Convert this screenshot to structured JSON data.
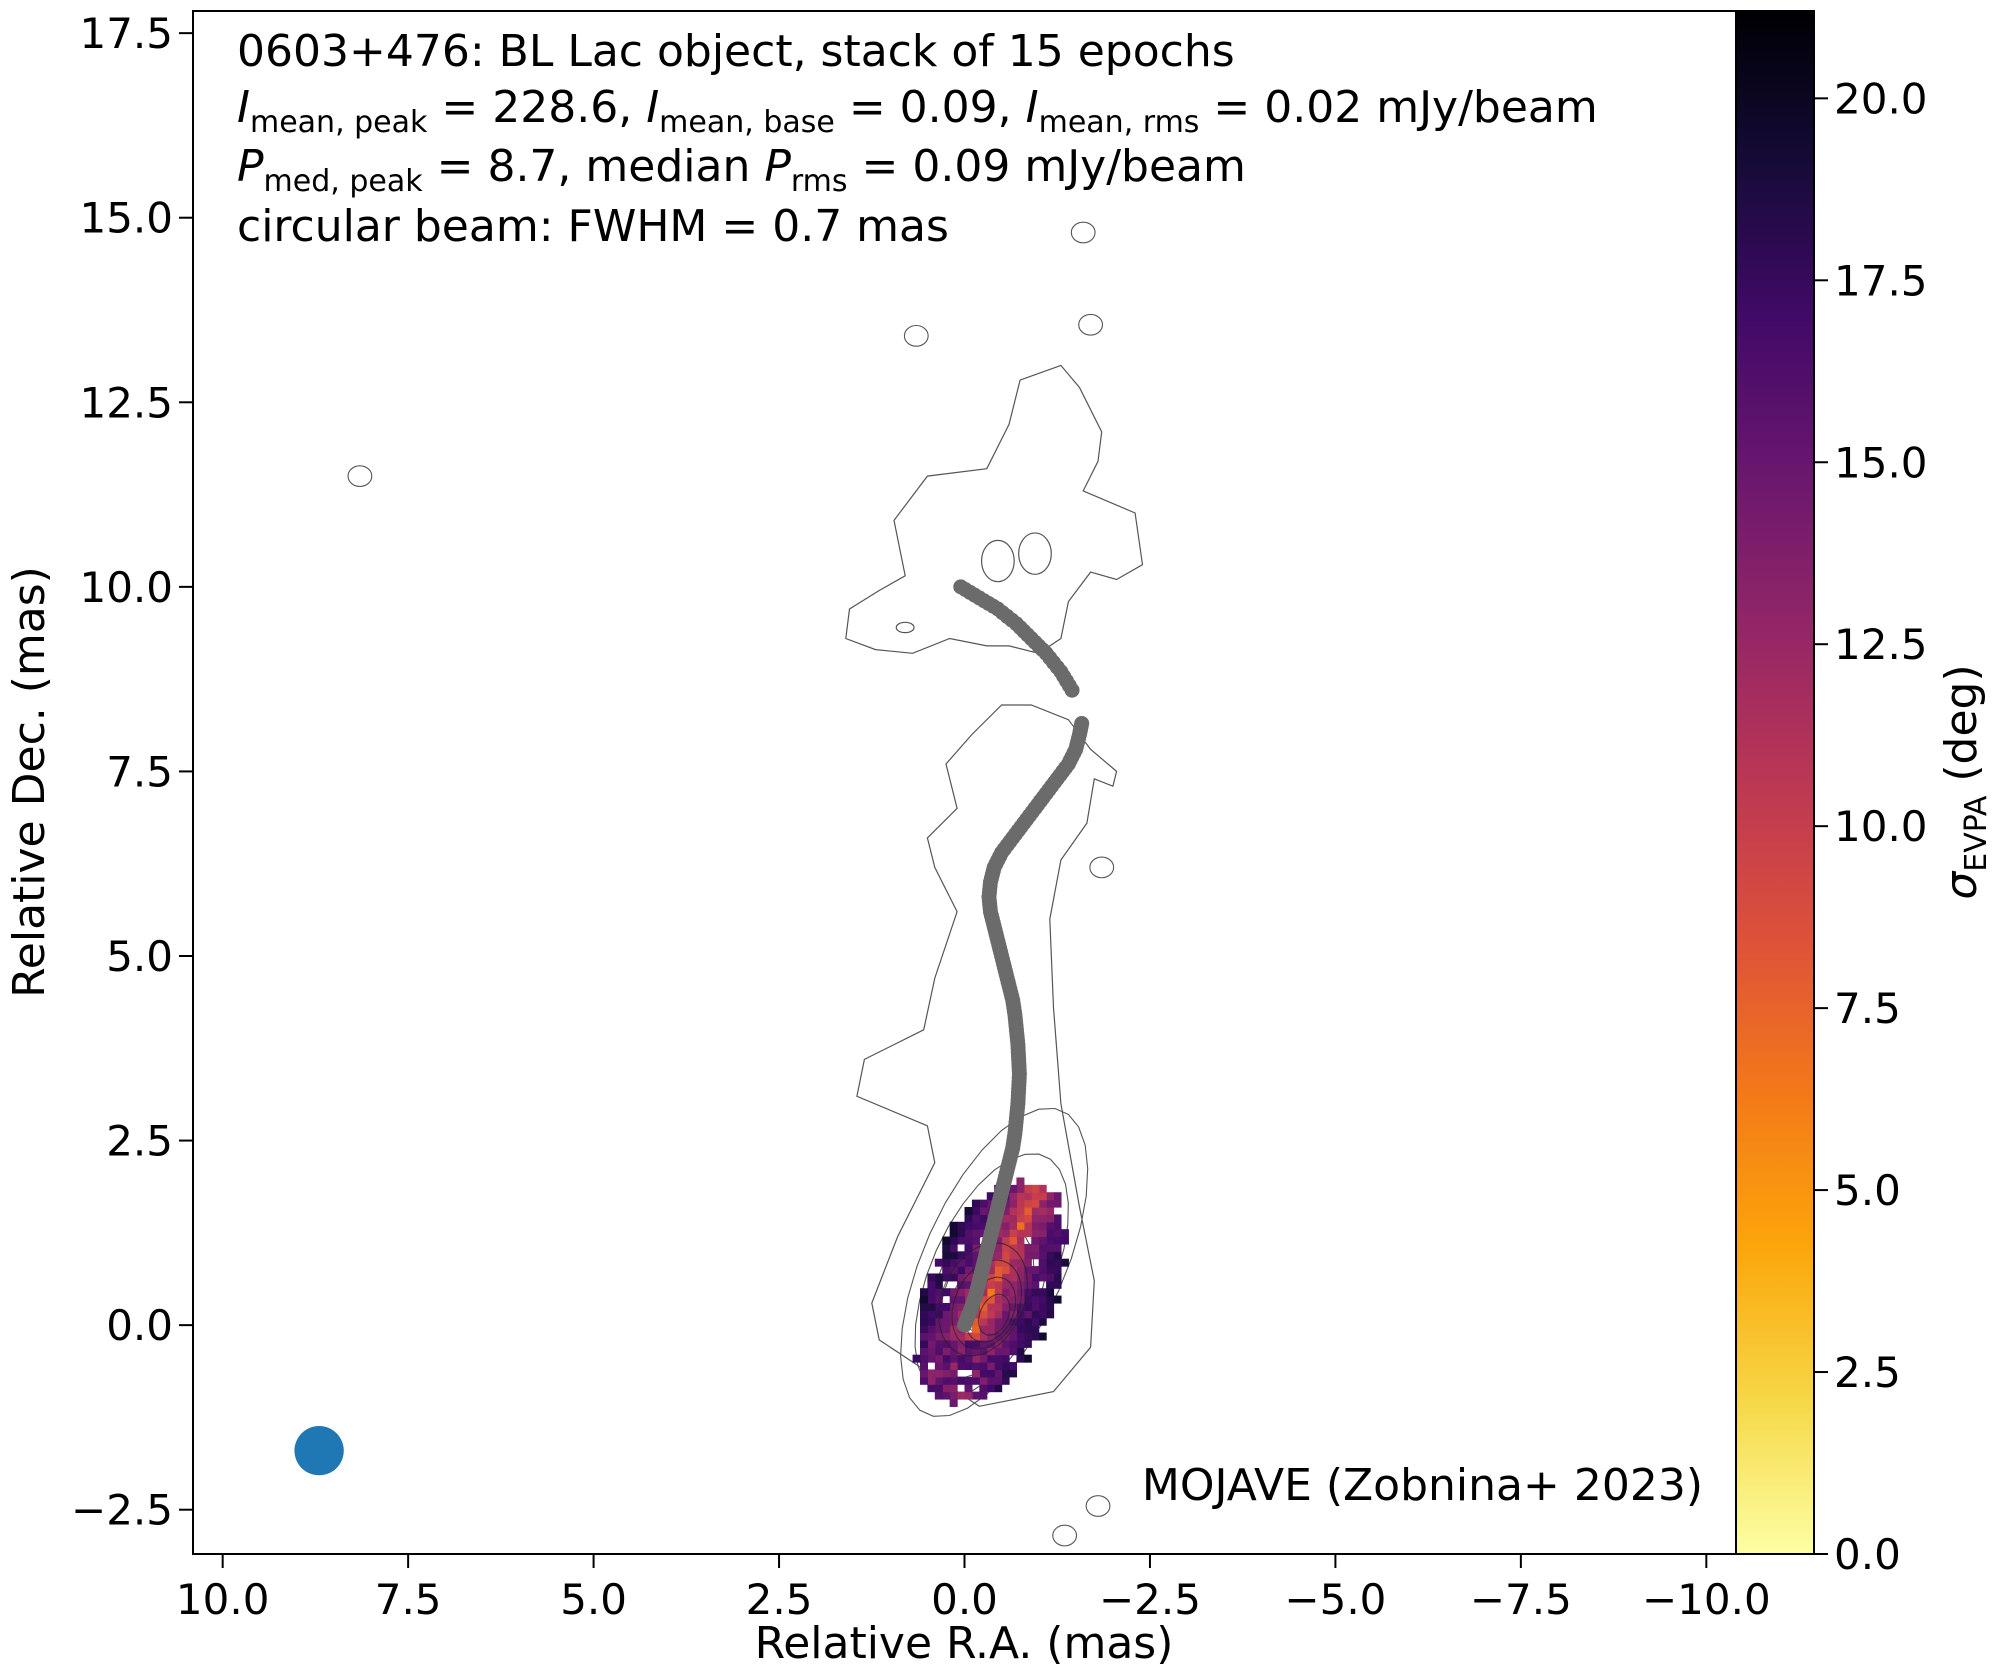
{
  "chart_data": {
    "type": "scatter",
    "title_lines": {
      "line1": "0603+476: BL Lac object, stack of 15 epochs",
      "line2": {
        "s1": "I",
        "s1sub": "mean, peak",
        "v1": " = 228.6, ",
        "s2": "I",
        "s2sub": "mean, base",
        "v2": " = 0.09, ",
        "s3": "I",
        "s3sub": "mean, rms",
        "v3": " = 0.02 mJy/beam"
      },
      "line3": {
        "s1": "P",
        "s1sub": "med, peak",
        "v1": " = 8.7, median ",
        "s2": "P",
        "s2sub": "rms",
        "v2": " = 0.09 mJy/beam"
      },
      "line4": "circular beam: FWHM = 0.7 mas"
    },
    "credit": "MOJAVE (Zobnina+ 2023)",
    "xlabel": "Relative R.A. (mas)",
    "ylabel": "Relative Dec. (mas)",
    "xlim": [
      10.4,
      -10.4
    ],
    "ylim": [
      -3.1,
      17.8
    ],
    "xticks": [
      10.0,
      7.5,
      5.0,
      2.5,
      0.0,
      -2.5,
      -5.0,
      -7.5,
      -10.0
    ],
    "xtick_labels": [
      "10.0",
      "7.5",
      "5.0",
      "2.5",
      "0.0",
      "−2.5",
      "−5.0",
      "−7.5",
      "−10.0"
    ],
    "yticks": [
      -2.5,
      0.0,
      2.5,
      5.0,
      7.5,
      10.0,
      12.5,
      15.0,
      17.5
    ],
    "ytick_labels": [
      "−2.5",
      "0.0",
      "2.5",
      "5.0",
      "7.5",
      "10.0",
      "12.5",
      "15.0",
      "17.5"
    ],
    "colorbar": {
      "label_sym": "σ",
      "label_sub": "EVPA",
      "label_unit": " (deg)",
      "range": [
        0,
        21.2
      ],
      "ticks": [
        0.0,
        2.5,
        5.0,
        7.5,
        10.0,
        12.5,
        15.0,
        17.5,
        20.0
      ],
      "tick_labels": [
        "0.0",
        "2.5",
        "5.0",
        "7.5",
        "10.0",
        "12.5",
        "15.0",
        "17.5",
        "20.0"
      ],
      "colormap": "inferno_r",
      "stops": [
        "#fcffa4",
        "#f6d746",
        "#fca50a",
        "#f37819",
        "#dd513a",
        "#bc3754",
        "#932667",
        "#6a176e",
        "#420a68",
        "#160b39",
        "#000004"
      ]
    },
    "ridgeline_color": "#6b6b6b",
    "ridgeline": [
      [
        0.0,
        0.0
      ],
      [
        -0.08,
        0.2
      ],
      [
        -0.15,
        0.4
      ],
      [
        -0.2,
        0.6
      ],
      [
        -0.25,
        0.8
      ],
      [
        -0.3,
        1.0
      ],
      [
        -0.35,
        1.2
      ],
      [
        -0.4,
        1.4
      ],
      [
        -0.45,
        1.6
      ],
      [
        -0.5,
        1.8
      ],
      [
        -0.55,
        2.0
      ],
      [
        -0.6,
        2.2
      ],
      [
        -0.65,
        2.4
      ],
      [
        -0.68,
        2.6
      ],
      [
        -0.7,
        2.8
      ],
      [
        -0.72,
        3.0
      ],
      [
        -0.73,
        3.2
      ],
      [
        -0.74,
        3.4
      ],
      [
        -0.73,
        3.6
      ],
      [
        -0.72,
        3.8
      ],
      [
        -0.7,
        4.0
      ],
      [
        -0.68,
        4.2
      ],
      [
        -0.65,
        4.4
      ],
      [
        -0.6,
        4.6
      ],
      [
        -0.55,
        4.8
      ],
      [
        -0.5,
        5.0
      ],
      [
        -0.45,
        5.2
      ],
      [
        -0.4,
        5.4
      ],
      [
        -0.35,
        5.6
      ],
      [
        -0.33,
        5.8
      ],
      [
        -0.35,
        6.0
      ],
      [
        -0.4,
        6.2
      ],
      [
        -0.5,
        6.4
      ],
      [
        -0.65,
        6.6
      ],
      [
        -0.8,
        6.8
      ],
      [
        -0.95,
        7.0
      ],
      [
        -1.1,
        7.2
      ],
      [
        -1.25,
        7.4
      ],
      [
        -1.4,
        7.6
      ],
      [
        -1.5,
        7.8
      ],
      [
        -1.55,
        8.0
      ],
      [
        -1.58,
        8.15
      ],
      [
        -1.45,
        8.6
      ],
      [
        -1.3,
        8.85
      ],
      [
        -1.1,
        9.1
      ],
      [
        -0.9,
        9.3
      ],
      [
        -0.7,
        9.5
      ],
      [
        -0.45,
        9.7
      ],
      [
        -0.2,
        9.85
      ],
      [
        0.05,
        10.0
      ]
    ],
    "evpa_region": {
      "shape": "ellipse",
      "center": [
        -0.35,
        0.45
      ],
      "semi_axes": [
        0.85,
        1.6
      ],
      "tilt_deg": 24,
      "value_range": [
        5.0,
        18.0
      ]
    },
    "beam": {
      "x": 8.7,
      "y": -1.7,
      "fwhm": 0.7,
      "color": "#1f77b4"
    },
    "stray_contours": [
      [
        8.15,
        11.5
      ],
      [
        0.65,
        13.4
      ],
      [
        -1.7,
        13.55
      ],
      [
        -1.6,
        14.8
      ],
      [
        -1.8,
        -2.45
      ],
      [
        -1.35,
        -2.85
      ],
      [
        -1.85,
        6.2
      ]
    ]
  }
}
